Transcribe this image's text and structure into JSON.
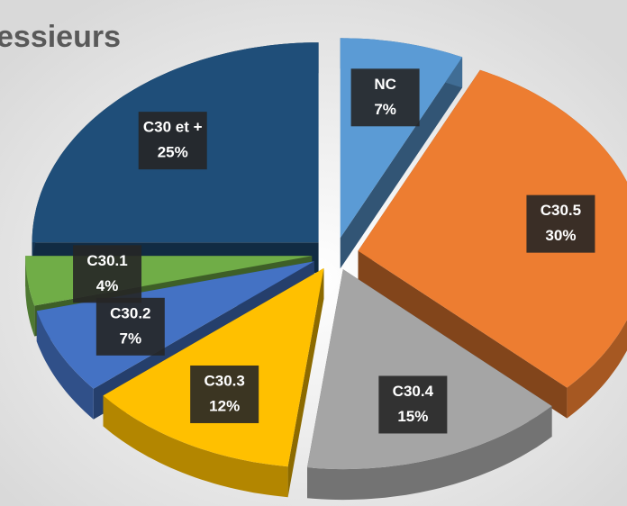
{
  "chart_data": {
    "type": "pie",
    "title": "essieurs",
    "categories": [
      "NC",
      "C30.5",
      "C30.4",
      "C30.3",
      "C30.2",
      "C30.1",
      "C30 et +"
    ],
    "values": [
      7,
      30,
      15,
      12,
      7,
      4,
      25
    ],
    "value_labels": [
      "7%",
      "30%",
      "15%",
      "12%",
      "7%",
      "4%",
      "25%"
    ],
    "colors": [
      "#5b9bd5",
      "#ed7d31",
      "#a5a5a5",
      "#ffc000",
      "#4472c4",
      "#70ad47",
      "#1f4e79"
    ],
    "style": "3d",
    "exploded": true
  }
}
